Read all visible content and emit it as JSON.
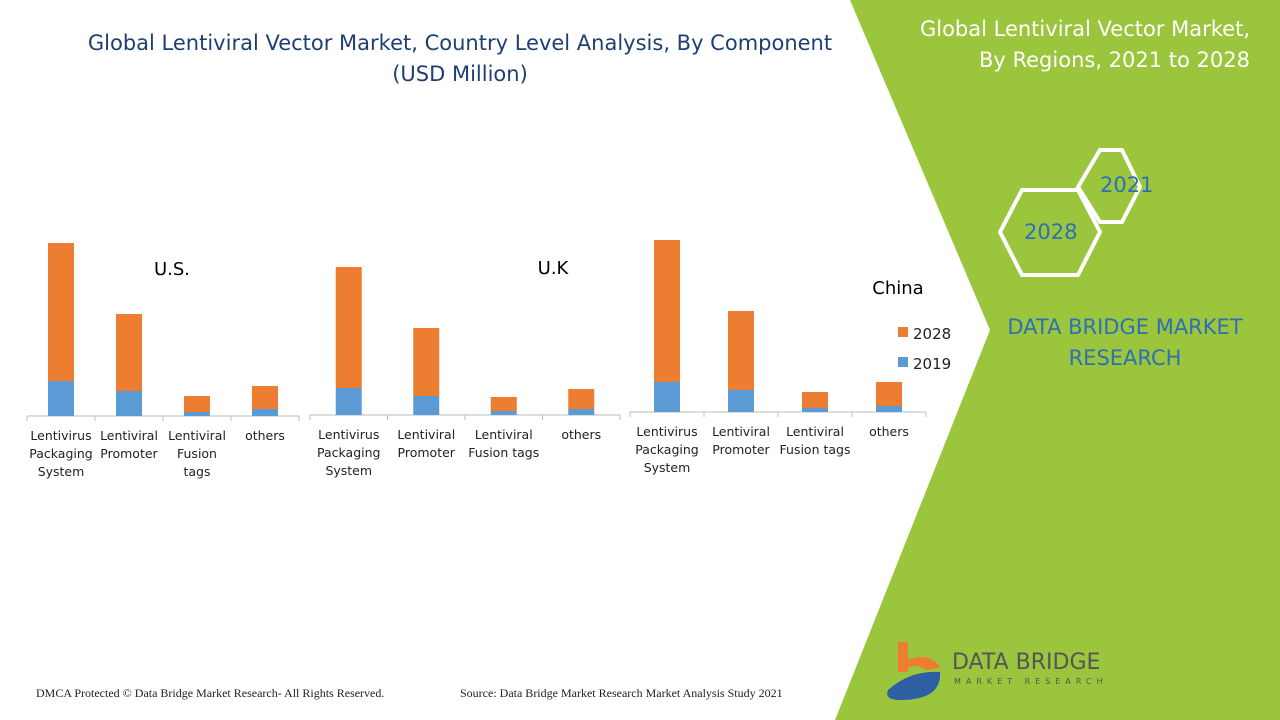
{
  "title": "Global Lentiviral Vector Market, Country Level Analysis, By Component",
  "subtitle": "(USD Million)",
  "right_panel": {
    "title_line1": "Global Lentiviral Vector Market,",
    "title_line2": "By Regions, 2021 to 2028",
    "hex_a": "2021",
    "hex_b": "2028",
    "brand_line1": "DATA BRIDGE MARKET",
    "brand_line2": "RESEARCH",
    "logo_text": "DATA BRIDGE",
    "logo_sub": "MARKET RESEARCH"
  },
  "footer": {
    "left": "DMCA Protected © Data Bridge Market Research- All Rights Reserved.",
    "right": "Source: Data Bridge Market Research Market Analysis Study 2021"
  },
  "colors": {
    "2019": "#5b9bd5",
    "2028": "#ed7d31",
    "panel": "#9bc53d"
  },
  "chart_data": [
    {
      "type": "bar",
      "stacked": true,
      "title": "U.S.",
      "categories": [
        "Lentivirus Packaging System",
        "Lentiviral Promoter",
        "Lentiviral Fusion tags",
        "others"
      ],
      "series": [
        {
          "name": "2019",
          "values": [
            35,
            25,
            4,
            7
          ]
        },
        {
          "name": "2028",
          "values": [
            138,
            77,
            16,
            23
          ]
        }
      ]
    },
    {
      "type": "bar",
      "stacked": true,
      "title": "U.K",
      "categories": [
        "Lentivirus Packaging System",
        "Lentiviral Promoter",
        "Lentiviral Fusion tags",
        "others"
      ],
      "series": [
        {
          "name": "2019",
          "values": [
            27,
            19,
            4,
            6
          ]
        },
        {
          "name": "2028",
          "values": [
            121,
            68,
            14,
            20
          ]
        }
      ]
    },
    {
      "type": "bar",
      "stacked": true,
      "title": "China",
      "categories": [
        "Lentivirus Packaging System",
        "Lentiviral Promoter",
        "Lentiviral Fusion tags",
        "others"
      ],
      "series": [
        {
          "name": "2019",
          "values": [
            30,
            22,
            4,
            6
          ]
        },
        {
          "name": "2028",
          "values": [
            142,
            79,
            16,
            24
          ]
        }
      ],
      "legend": "right",
      "legend_entries": [
        "2028",
        "2019"
      ]
    }
  ]
}
